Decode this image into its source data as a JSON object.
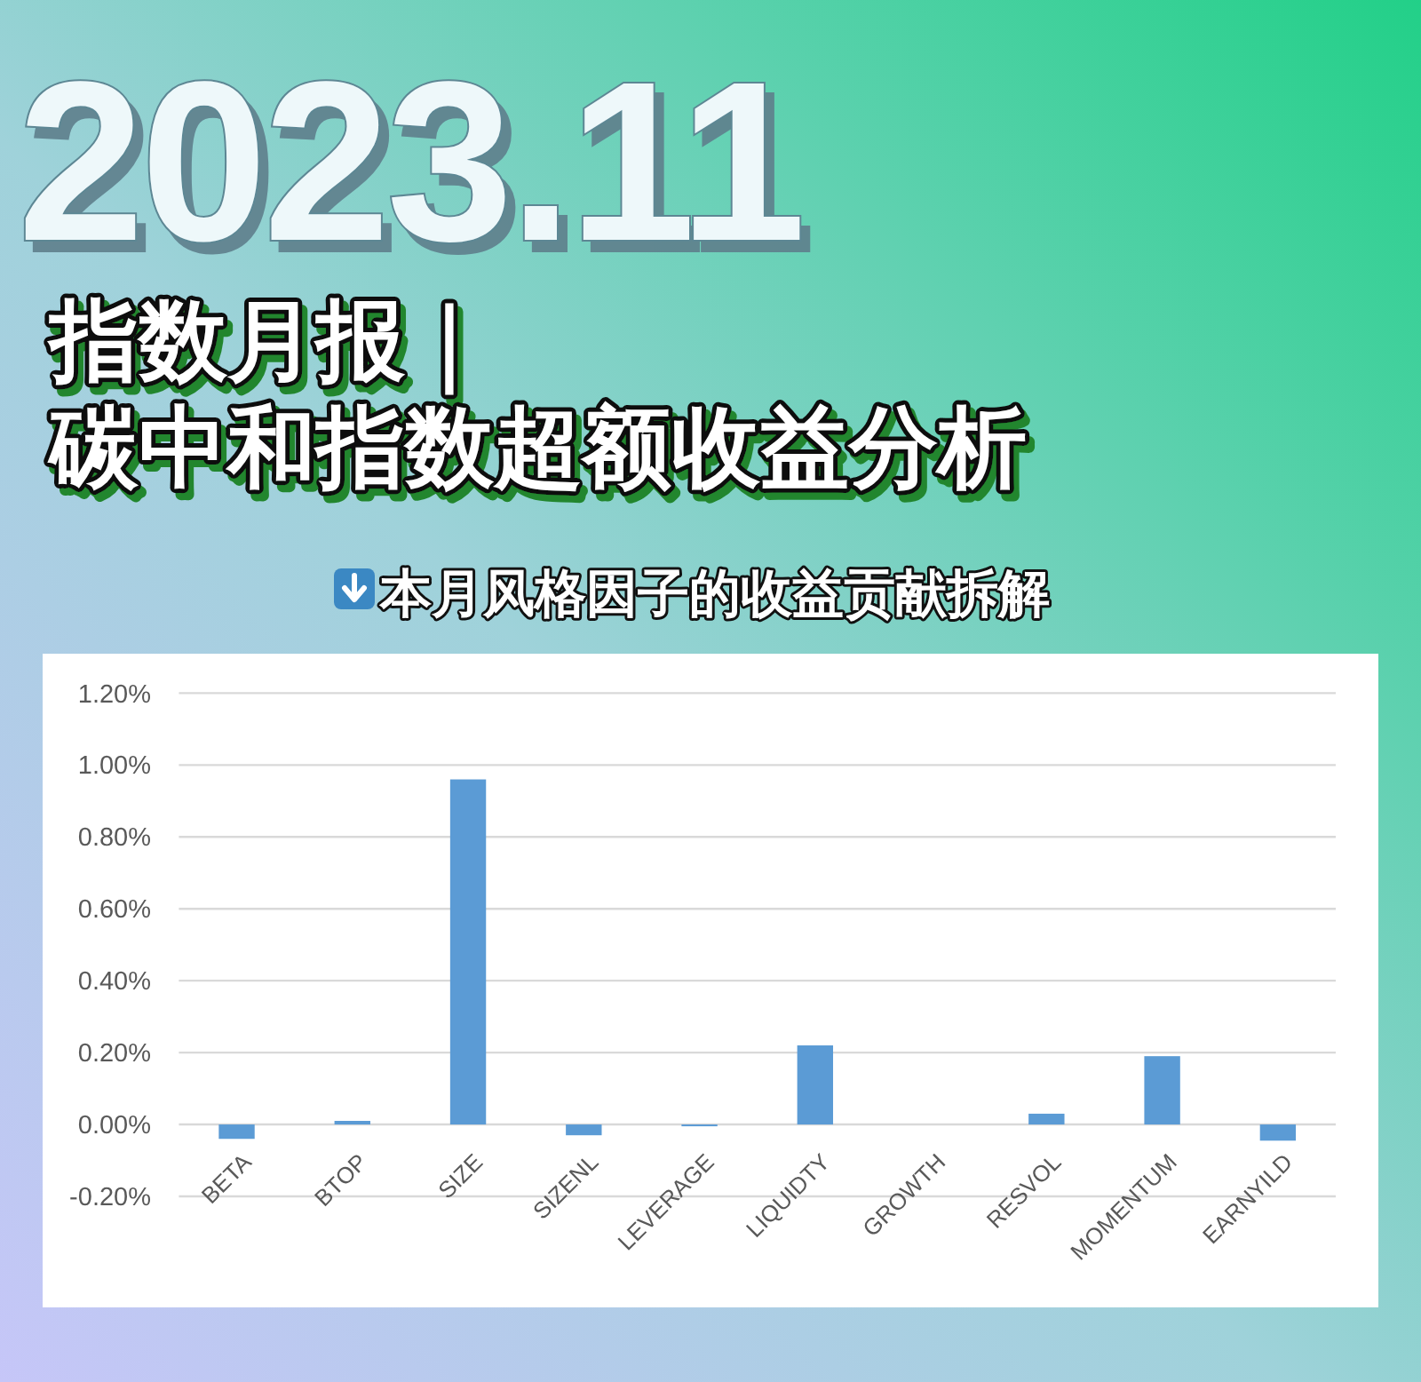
{
  "chart_data": {
    "type": "bar",
    "title": "指数月报｜碳中和指数超额收益分析",
    "subtitle": "本月风格因子的收益贡献拆解",
    "annotations": [
      "2023.11"
    ],
    "categories": [
      "BETA",
      "BTOP",
      "SIZE",
      "SIZENL",
      "LEVERAGE",
      "LIQUIDTY",
      "GROWTH",
      "RESVOL",
      "MOMENTUM",
      "EARNYILD"
    ],
    "values": [
      -0.04,
      0.01,
      0.96,
      -0.03,
      -0.005,
      0.22,
      0,
      0.03,
      0.19,
      -0.045
    ],
    "color": "#5b9bd5",
    "ylim": [
      -0.2,
      1.2
    ],
    "yticks": [
      {
        "value": -0.2,
        "label": "-0.20%"
      },
      {
        "value": 0,
        "label": "0.00%"
      },
      {
        "value": 0.2,
        "label": "0.20%"
      },
      {
        "value": 0.4,
        "label": "0.40%"
      },
      {
        "value": 0.6,
        "label": "0.60%"
      },
      {
        "value": 0.8,
        "label": "0.80%"
      },
      {
        "value": 1.0,
        "label": "1.00%"
      },
      {
        "value": 1.2,
        "label": "1.20%"
      }
    ],
    "grid": "y"
  }
}
